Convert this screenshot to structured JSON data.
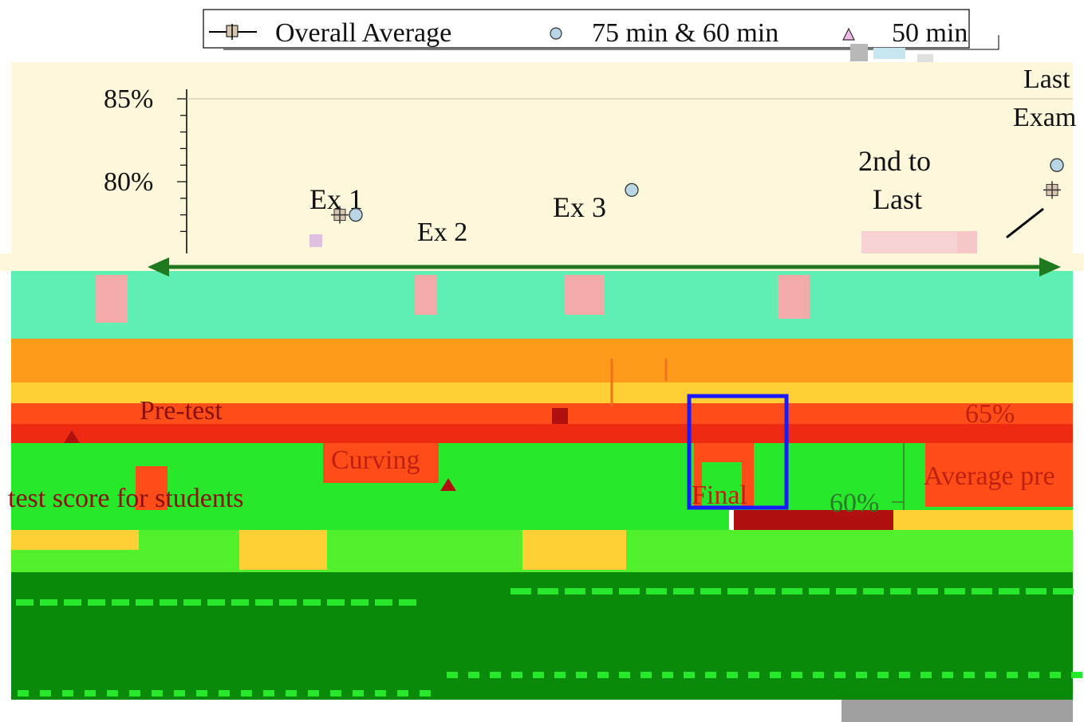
{
  "chart_data": {
    "type": "line",
    "y_tick_labels": [
      "85%",
      "80%",
      "65%",
      "60%"
    ],
    "legend": {
      "placement": "top",
      "items": [
        {
          "label": "Overall Average",
          "marker": "plus-square"
        },
        {
          "label": "75 min & 60 min",
          "marker": "circle"
        },
        {
          "label": "50 min",
          "marker": "triangle"
        }
      ]
    },
    "annotations": {
      "ex1": "Ex 1",
      "ex2": "Ex 2",
      "ex3": "Ex 3",
      "second_to_last_1": "2nd to",
      "second_to_last_2": "Last",
      "last_1": "Last",
      "last_2": "Exam",
      "pretest": "Pre-test",
      "curving": "Curving",
      "final": "Final",
      "pretest_score": "test score for students",
      "average_pre": "Average pre"
    },
    "points_visible": [
      {
        "exam": "Ex 1",
        "series": "75 min & 60 min",
        "y": 78
      },
      {
        "exam": "Ex 1",
        "series": "Overall Average",
        "y": 78
      },
      {
        "exam": "Ex 3",
        "series": "75 min & 60 min",
        "y": 79.5
      },
      {
        "exam": "Last Exam",
        "series": "75 min & 60 min",
        "y": 81
      },
      {
        "exam": "Last Exam",
        "series": "Overall Average",
        "y": 79.5
      }
    ],
    "grid": true,
    "colors": {
      "axis": "#000000",
      "text": "#111111",
      "circle_fill": "#b9d6e6",
      "triangle_fill": "#f0b8e6",
      "arrow": "#1f7a1f",
      "highlight_box": "#1a1aff"
    }
  },
  "overlay_colors": {
    "cream": "#fdf7dc",
    "aqua": "#5fefb2",
    "orange": "#ff9a1a",
    "orange_red": "#ff4d1a",
    "red": "#ef2a12",
    "bright_green": "#28e82b",
    "dark_green": "#0a8a0a",
    "light_green": "#52f02c",
    "yellow": "#ffd036",
    "pink": "#f4aaa8",
    "gray": "#a0a0a0"
  }
}
